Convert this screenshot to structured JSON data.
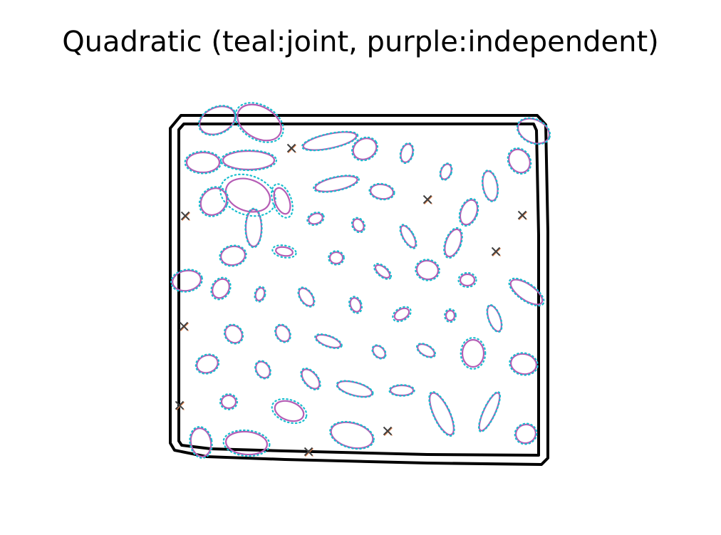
{
  "title": "Quadratic (teal:joint, purple:independent)",
  "colors": {
    "boundary": "#000000",
    "joint": "#17becf",
    "independent": "#b55db5",
    "marker_dark": "#404040",
    "marker_light": "#e8824a"
  },
  "legend": {
    "joint": "teal",
    "independent": "purple"
  }
}
